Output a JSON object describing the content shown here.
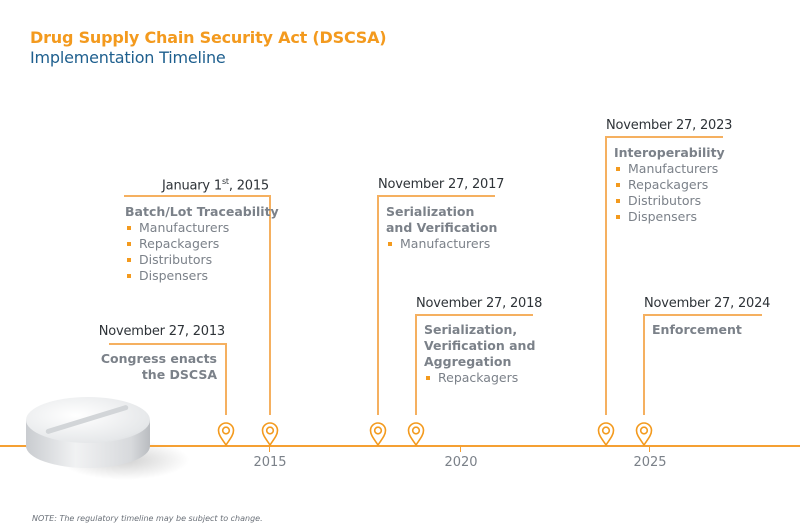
{
  "header": {
    "title": "Drug Supply Chain Security Act (DSCSA)",
    "subtitle": "Implementation Timeline"
  },
  "colors": {
    "accent": "#f39a1e",
    "title_blue": "#1e5f8e",
    "text_gray": "#7b8189"
  },
  "axis": {
    "years": [
      "2015",
      "2020",
      "2025"
    ]
  },
  "events": [
    {
      "date": "November 27, 2013",
      "heading_lines": [
        "Congress enacts",
        "the DSCSA"
      ],
      "items": []
    },
    {
      "date_main": "January 1",
      "date_sup": "st",
      "date_tail": ", 2015",
      "heading_lines": [
        "Batch/Lot Traceability"
      ],
      "items": [
        "Manufacturers",
        "Repackagers",
        "Distributors",
        "Dispensers"
      ]
    },
    {
      "date": "November 27, 2017",
      "heading_lines": [
        "Serialization",
        "and Verification"
      ],
      "items": [
        "Manufacturers"
      ]
    },
    {
      "date": "November 27, 2018",
      "heading_lines": [
        "Serialization,",
        "Verification and",
        "Aggregation"
      ],
      "items": [
        "Repackagers"
      ]
    },
    {
      "date": "November 27, 2023",
      "heading_lines": [
        "Interoperability"
      ],
      "items": [
        "Manufacturers",
        "Repackagers",
        "Distributors",
        "Dispensers"
      ]
    },
    {
      "date": "November 27, 2024",
      "heading_lines": [
        "Enforcement"
      ],
      "items": []
    }
  ],
  "icons": {
    "marker": "map-pin-icon",
    "image": "pill-tablet-image"
  },
  "note": "NOTE: The regulatory timeline may be subject to change."
}
